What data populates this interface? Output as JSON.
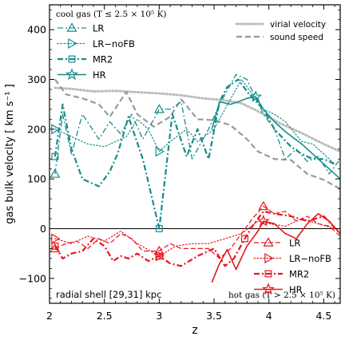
{
  "chart_data": {
    "type": "line",
    "xlabel": "z",
    "ylabel": "gas bulk velocity [ km s⁻¹ ]",
    "xlim": [
      2.0,
      4.65
    ],
    "ylim": [
      -150,
      450
    ],
    "xticks": [
      2,
      2.5,
      3,
      3.5,
      4,
      4.5
    ],
    "xtick_labels": [
      "2",
      "2.5",
      "3",
      "3.5",
      "4",
      "4.5"
    ],
    "yticks": [
      -100,
      0,
      100,
      200,
      300,
      400
    ],
    "ytick_labels": [
      "−100",
      "0",
      "100",
      "200",
      "300",
      "400"
    ],
    "colors": {
      "cool": "#168c8c",
      "hot": "#e8141e",
      "virial": "#bcbcbc",
      "sound": "#999999"
    },
    "annotations": {
      "cool_title": "cool gas (T ≤ 2.5 × 10⁵ K)",
      "hot_title": "hot gas (T > 2.5 × 10⁵ K)",
      "shell": "radial shell [29,31] kpc"
    },
    "legend_ref": [
      "virial velocity",
      "sound speed"
    ],
    "legend_cool": [
      "LR",
      "LR−noFB",
      "MR2",
      "HR"
    ],
    "legend_hot": [
      "LR",
      "LR−noFB",
      "MR2",
      "HR"
    ],
    "series": [
      {
        "name": "virial velocity",
        "group": "ref",
        "style": "dot-thick",
        "marker": "none",
        "x": [
          2.05,
          2.2,
          2.4,
          2.6,
          2.75,
          3.0,
          3.2,
          3.4,
          3.6,
          3.75,
          3.9,
          4.1,
          4.3,
          4.5,
          4.65
        ],
        "y": [
          283,
          281,
          276,
          277,
          275,
          272,
          268,
          262,
          258,
          252,
          236,
          212,
          192,
          170,
          155
        ]
      },
      {
        "name": "sound speed",
        "group": "ref",
        "style": "dash-thick",
        "marker": "none",
        "x": [
          2.05,
          2.15,
          2.3,
          2.45,
          2.55,
          2.7,
          2.8,
          2.95,
          3.1,
          3.2,
          3.35,
          3.5,
          3.65,
          3.8,
          3.9,
          4.05,
          4.2,
          4.35,
          4.5,
          4.65
        ],
        "y": [
          300,
          270,
          262,
          250,
          225,
          275,
          230,
          205,
          225,
          260,
          220,
          218,
          208,
          180,
          155,
          140,
          138,
          110,
          98,
          80
        ]
      },
      {
        "name": "LR",
        "group": "cool",
        "style": "dashdot",
        "marker": "triangle",
        "x": [
          2.05,
          2.12,
          2.2,
          2.3,
          2.45,
          2.55,
          2.65,
          2.75,
          2.85,
          3.0,
          3.1,
          3.2,
          3.3,
          3.45,
          3.55,
          3.7,
          3.8,
          3.95,
          4.05,
          4.15,
          4.25,
          4.35,
          4.45,
          4.55,
          4.65
        ],
        "y": [
          110,
          230,
          150,
          230,
          180,
          215,
          190,
          230,
          180,
          240,
          240,
          255,
          140,
          200,
          250,
          310,
          300,
          230,
          200,
          140,
          160,
          135,
          145,
          110,
          140
        ]
      },
      {
        "name": "LR−noFB",
        "group": "cool",
        "style": "dotted",
        "marker": "triangle-right",
        "x": [
          2.05,
          2.2,
          2.35,
          2.5,
          2.7,
          2.8,
          2.9,
          3.0,
          3.1,
          3.25,
          3.35,
          3.5,
          3.65,
          3.75,
          3.85,
          3.95,
          4.05,
          4.15,
          4.3,
          4.4,
          4.5,
          4.6
        ],
        "y": [
          200,
          185,
          170,
          165,
          185,
          220,
          200,
          155,
          175,
          200,
          175,
          200,
          260,
          300,
          270,
          240,
          230,
          215,
          175,
          170,
          150,
          130
        ]
      },
      {
        "name": "MR2",
        "group": "cool",
        "style": "dashdot-thick",
        "marker": "square",
        "x": [
          2.05,
          2.12,
          2.2,
          2.3,
          2.45,
          2.55,
          2.62,
          2.72,
          2.85,
          3.0,
          3.12,
          3.25,
          3.35,
          3.45,
          3.55,
          3.62,
          3.72,
          3.82,
          3.95,
          4.05,
          4.2,
          4.3,
          4.4,
          4.5,
          4.6
        ],
        "y": [
          145,
          250,
          160,
          100,
          85,
          115,
          150,
          225,
          140,
          0,
          230,
          145,
          200,
          140,
          255,
          285,
          300,
          270,
          240,
          200,
          165,
          150,
          140,
          140,
          130
        ]
      },
      {
        "name": "HR",
        "group": "cool",
        "style": "solid",
        "marker": "star",
        "x": [
          3.48,
          3.55,
          3.65,
          3.72,
          3.8,
          3.88,
          3.95,
          4.05,
          4.15,
          4.3,
          4.45,
          4.55,
          4.65
        ],
        "y": [
          200,
          255,
          250,
          255,
          262,
          265,
          240,
          215,
          195,
          170,
          140,
          120,
          100
        ]
      },
      {
        "name": "LR",
        "group": "hot",
        "style": "dashed",
        "marker": "triangle",
        "x": [
          2.05,
          2.15,
          2.25,
          2.35,
          2.45,
          2.55,
          2.65,
          2.75,
          2.85,
          3.0,
          3.1,
          3.2,
          3.3,
          3.45,
          3.55,
          3.65,
          3.75,
          3.85,
          3.95,
          4.05,
          4.15,
          4.25,
          4.35,
          4.45,
          4.55,
          4.65
        ],
        "y": [
          -40,
          -30,
          -25,
          -40,
          -20,
          -30,
          -10,
          -20,
          -45,
          -45,
          -30,
          -40,
          -40,
          -40,
          -60,
          -40,
          -10,
          20,
          45,
          30,
          35,
          15,
          25,
          10,
          5,
          -15
        ]
      },
      {
        "name": "LR−noFB",
        "group": "hot",
        "style": "dotted",
        "marker": "triangle-right",
        "x": [
          2.05,
          2.2,
          2.35,
          2.5,
          2.65,
          2.8,
          3.0,
          3.15,
          3.3,
          3.45,
          3.6,
          3.75,
          3.9,
          4.0,
          4.15,
          4.3,
          4.45,
          4.6
        ],
        "y": [
          -20,
          -30,
          -15,
          -25,
          -5,
          -30,
          -55,
          -35,
          -30,
          -30,
          -20,
          -10,
          15,
          10,
          5,
          20,
          10,
          0
        ]
      },
      {
        "name": "MR2",
        "group": "hot",
        "style": "dashdot-thick",
        "marker": "square",
        "x": [
          2.05,
          2.12,
          2.2,
          2.3,
          2.4,
          2.5,
          2.58,
          2.65,
          2.72,
          2.8,
          2.9,
          3.0,
          3.1,
          3.2,
          3.35,
          3.5,
          3.6,
          3.68,
          3.78,
          3.85,
          3.95,
          4.05,
          4.2,
          4.35,
          4.5,
          4.65
        ],
        "y": [
          -35,
          -60,
          -50,
          -45,
          -20,
          -35,
          -65,
          -55,
          -60,
          -50,
          -65,
          -55,
          -70,
          -75,
          -55,
          -40,
          -75,
          -60,
          -20,
          5,
          35,
          30,
          25,
          15,
          25,
          -10
        ]
      },
      {
        "name": "HR",
        "group": "hot",
        "style": "solid",
        "marker": "star",
        "x": [
          3.48,
          3.55,
          3.62,
          3.7,
          3.8,
          3.9,
          3.95,
          4.05,
          4.15,
          4.25,
          4.35,
          4.45,
          4.55,
          4.65
        ],
        "y": [
          -108,
          -70,
          -42,
          -82,
          -35,
          -5,
          15,
          10,
          -10,
          -20,
          10,
          30,
          15,
          -10
        ]
      }
    ]
  }
}
